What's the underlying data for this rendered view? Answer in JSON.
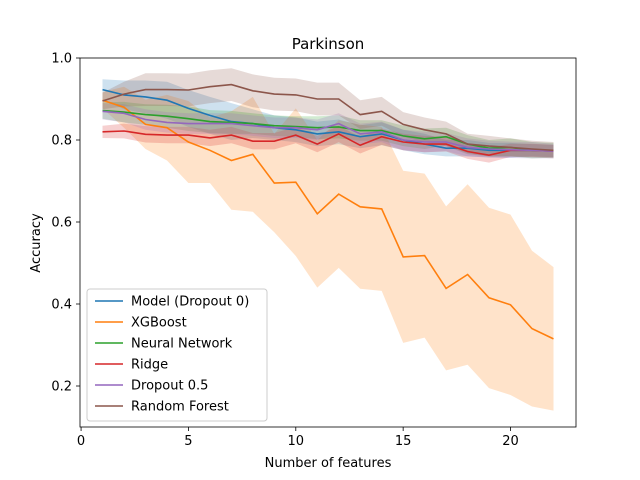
{
  "chart_data": {
    "type": "line",
    "title": "Parkinson",
    "xlabel": "Number of features",
    "ylabel": "Accuracy",
    "xlim": [
      -0.05,
      23.05
    ],
    "ylim": [
      0.1,
      1.0
    ],
    "xticks": [
      0,
      5,
      10,
      15,
      20
    ],
    "yticks": [
      0.2,
      0.4,
      0.6,
      0.8,
      1.0
    ],
    "ytick_labels": [
      "0.2",
      "0.4",
      "0.6",
      "0.8",
      "1.0"
    ],
    "legend_position": "lower-left",
    "grid": false,
    "x": [
      1,
      2,
      3,
      4,
      5,
      6,
      7,
      8,
      9,
      10,
      11,
      12,
      13,
      14,
      15,
      16,
      17,
      18,
      19,
      20,
      21,
      22
    ],
    "series": [
      {
        "name": "Model (Dropout 0)",
        "color": "#1f77b4",
        "values": [
          0.923,
          0.91,
          0.905,
          0.897,
          0.877,
          0.86,
          0.845,
          0.84,
          0.83,
          0.825,
          0.815,
          0.82,
          0.808,
          0.815,
          0.8,
          0.79,
          0.78,
          0.78,
          0.775,
          0.775,
          0.775,
          0.773
        ],
        "band": [
          0.025,
          0.035,
          0.04,
          0.045,
          0.045,
          0.045,
          0.045,
          0.035,
          0.03,
          0.03,
          0.03,
          0.03,
          0.028,
          0.028,
          0.025,
          0.025,
          0.02,
          0.02,
          0.018,
          0.018,
          0.015,
          0.015
        ]
      },
      {
        "name": "XGBoost",
        "color": "#ff7f0e",
        "values": [
          0.897,
          0.88,
          0.838,
          0.83,
          0.795,
          0.775,
          0.75,
          0.765,
          0.695,
          0.697,
          0.62,
          0.668,
          0.637,
          0.632,
          0.515,
          0.518,
          0.438,
          0.472,
          0.415,
          0.398,
          0.34,
          0.315
        ],
        "band": [
          0.02,
          0.05,
          0.06,
          0.08,
          0.1,
          0.08,
          0.12,
          0.14,
          0.12,
          0.18,
          0.18,
          0.18,
          0.2,
          0.2,
          0.21,
          0.2,
          0.2,
          0.22,
          0.22,
          0.22,
          0.19,
          0.175
        ]
      },
      {
        "name": "Neural Network",
        "color": "#2ca02c",
        "values": [
          0.872,
          0.868,
          0.862,
          0.858,
          0.852,
          0.845,
          0.843,
          0.84,
          0.835,
          0.833,
          0.83,
          0.832,
          0.823,
          0.823,
          0.81,
          0.803,
          0.808,
          0.79,
          0.78,
          0.782,
          0.775,
          0.775
        ],
        "band": [
          0.02,
          0.025,
          0.025,
          0.028,
          0.03,
          0.028,
          0.028,
          0.025,
          0.025,
          0.025,
          0.028,
          0.028,
          0.025,
          0.025,
          0.025,
          0.025,
          0.022,
          0.022,
          0.02,
          0.022,
          0.02,
          0.018
        ]
      },
      {
        "name": "Ridge",
        "color": "#d62728",
        "values": [
          0.82,
          0.822,
          0.814,
          0.812,
          0.812,
          0.805,
          0.812,
          0.797,
          0.797,
          0.812,
          0.79,
          0.815,
          0.787,
          0.808,
          0.795,
          0.79,
          0.79,
          0.772,
          0.763,
          0.775,
          0.775,
          0.773
        ],
        "band": [
          0.015,
          0.018,
          0.02,
          0.02,
          0.02,
          0.02,
          0.02,
          0.02,
          0.02,
          0.02,
          0.02,
          0.02,
          0.02,
          0.02,
          0.02,
          0.02,
          0.018,
          0.018,
          0.018,
          0.016,
          0.016,
          0.015
        ]
      },
      {
        "name": "Dropout 0.5",
        "color": "#9467bd",
        "values": [
          0.87,
          0.865,
          0.85,
          0.843,
          0.84,
          0.84,
          0.84,
          0.835,
          0.83,
          0.83,
          0.825,
          0.84,
          0.815,
          0.82,
          0.8,
          0.795,
          0.795,
          0.782,
          0.778,
          0.776,
          0.775,
          0.773
        ],
        "band": [
          0.02,
          0.022,
          0.025,
          0.025,
          0.025,
          0.025,
          0.025,
          0.025,
          0.025,
          0.025,
          0.025,
          0.025,
          0.025,
          0.025,
          0.025,
          0.025,
          0.022,
          0.022,
          0.02,
          0.02,
          0.02,
          0.018
        ]
      },
      {
        "name": "Random Forest",
        "color": "#8c564b",
        "values": [
          0.895,
          0.912,
          0.923,
          0.923,
          0.922,
          0.93,
          0.935,
          0.92,
          0.912,
          0.91,
          0.9,
          0.9,
          0.862,
          0.87,
          0.838,
          0.825,
          0.815,
          0.79,
          0.785,
          0.782,
          0.778,
          0.775
        ],
        "band": [
          0.02,
          0.03,
          0.04,
          0.04,
          0.04,
          0.04,
          0.04,
          0.04,
          0.04,
          0.04,
          0.04,
          0.04,
          0.035,
          0.035,
          0.03,
          0.03,
          0.03,
          0.025,
          0.025,
          0.022,
          0.02,
          0.02
        ]
      }
    ]
  }
}
